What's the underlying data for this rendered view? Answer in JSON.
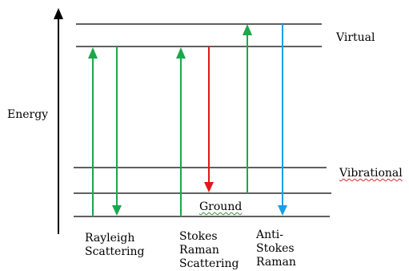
{
  "axis": {
    "label": "Energy"
  },
  "levels": {
    "virtual": "Virtual",
    "vibrational": "Vibrational",
    "ground": "Ground"
  },
  "processes": [
    {
      "lines": [
        "Rayleigh",
        "Scattering"
      ]
    },
    {
      "lines": [
        "Stokes",
        "Raman",
        "Scattering"
      ]
    },
    {
      "lines": [
        "Anti-",
        "Stokes",
        "Raman"
      ]
    }
  ],
  "colors": {
    "excitation": "#1aa84a",
    "stokes_emission": "#e01818",
    "anti_stokes_emission": "#1aa0e0",
    "levels": "#000000"
  }
}
